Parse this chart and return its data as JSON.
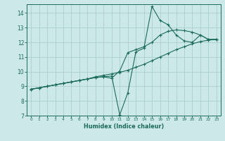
{
  "xlabel": "Humidex (Indice chaleur)",
  "bg_color": "#cce8e8",
  "grid_color": "#aacece",
  "line_color": "#1a6b5a",
  "xlim": [
    -0.5,
    23.5
  ],
  "ylim": [
    7,
    14.6
  ],
  "xticks": [
    0,
    1,
    2,
    3,
    4,
    5,
    6,
    7,
    8,
    9,
    10,
    11,
    12,
    13,
    14,
    15,
    16,
    17,
    18,
    19,
    20,
    21,
    22,
    23
  ],
  "yticks": [
    7,
    8,
    9,
    10,
    11,
    12,
    13,
    14
  ],
  "line1_x": [
    0,
    1,
    2,
    3,
    4,
    5,
    6,
    7,
    8,
    9,
    10,
    11,
    12,
    13,
    14,
    15,
    16,
    17,
    18,
    19,
    20,
    21,
    22,
    23
  ],
  "line1_y": [
    8.8,
    8.9,
    9.0,
    9.1,
    9.2,
    9.3,
    9.4,
    9.5,
    9.65,
    9.75,
    9.85,
    9.95,
    10.1,
    10.3,
    10.5,
    10.75,
    11.0,
    11.25,
    11.5,
    11.7,
    11.9,
    12.05,
    12.15,
    12.2
  ],
  "line2_x": [
    0,
    1,
    2,
    3,
    4,
    5,
    6,
    7,
    8,
    9,
    10,
    11,
    12,
    13,
    14,
    15,
    16,
    17,
    18,
    19,
    20,
    21,
    22,
    23
  ],
  "line2_y": [
    8.8,
    8.9,
    9.0,
    9.1,
    9.2,
    9.3,
    9.4,
    9.5,
    9.6,
    9.65,
    9.55,
    10.05,
    11.3,
    11.5,
    11.7,
    12.0,
    12.5,
    12.75,
    12.85,
    12.8,
    12.7,
    12.5,
    12.2,
    12.2
  ],
  "line3_x": [
    0,
    1,
    2,
    3,
    4,
    5,
    6,
    7,
    8,
    9,
    10,
    11,
    12,
    13,
    14,
    15,
    16,
    17,
    18,
    19,
    20,
    21,
    22,
    23
  ],
  "line3_y": [
    8.8,
    8.9,
    9.0,
    9.1,
    9.2,
    9.3,
    9.4,
    9.5,
    9.6,
    9.65,
    9.7,
    7.05,
    8.55,
    11.35,
    11.6,
    14.45,
    13.5,
    13.2,
    12.5,
    12.1,
    12.0,
    12.5,
    12.2,
    12.2
  ]
}
